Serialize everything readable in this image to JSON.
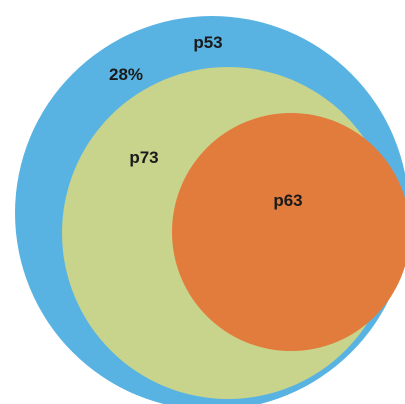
{
  "diagram": {
    "type": "nested-venn",
    "sets": [
      {
        "name": "p53",
        "label": "p53",
        "color": "#58b3e3"
      },
      {
        "name": "p73",
        "label": "p73",
        "color": "#c8d38b"
      },
      {
        "name": "p63",
        "label": "p63",
        "color": "#e27c3d"
      }
    ],
    "percent_label": "28%"
  }
}
